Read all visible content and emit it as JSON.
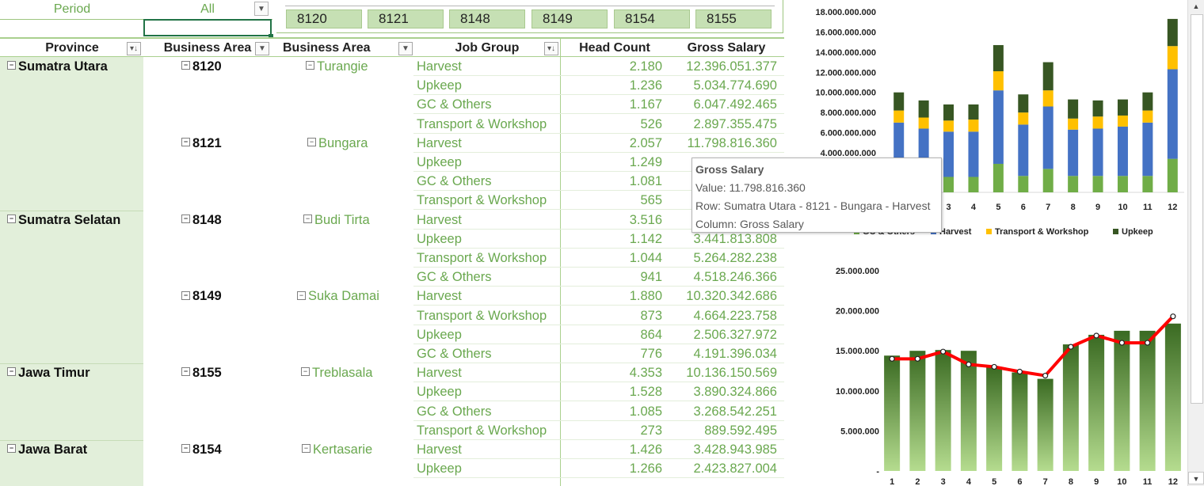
{
  "filter": {
    "label": "Period",
    "value": "All"
  },
  "slicer": {
    "items": [
      "8120",
      "8121",
      "8148",
      "8149",
      "8154",
      "8155"
    ]
  },
  "table": {
    "headers": [
      "Province",
      "Business Area",
      "Business Area Desc",
      "Job Group",
      "Head Count",
      "Gross Salary"
    ],
    "rows": [
      {
        "province": "Sumatra Utara",
        "area": "8120",
        "desc": "Turangie",
        "job": "Harvest",
        "hc": "2.180",
        "gs": "12.396.051.377"
      },
      {
        "province": "",
        "area": "",
        "desc": "",
        "job": "Upkeep",
        "hc": "1.236",
        "gs": "5.034.774.690"
      },
      {
        "province": "",
        "area": "",
        "desc": "",
        "job": "GC & Others",
        "hc": "1.167",
        "gs": "6.047.492.465"
      },
      {
        "province": "",
        "area": "",
        "desc": "",
        "job": "Transport & Workshop",
        "hc": "526",
        "gs": "2.897.355.475"
      },
      {
        "province": "",
        "area": "8121",
        "desc": "Bungara",
        "job": "Harvest",
        "hc": "2.057",
        "gs": "11.798.816.360"
      },
      {
        "province": "",
        "area": "",
        "desc": "",
        "job": "Upkeep",
        "hc": "1.249",
        "gs": ""
      },
      {
        "province": "",
        "area": "",
        "desc": "",
        "job": "GC & Others",
        "hc": "1.081",
        "gs": ""
      },
      {
        "province": "",
        "area": "",
        "desc": "",
        "job": "Transport & Workshop",
        "hc": "565",
        "gs": ""
      },
      {
        "province": "Sumatra Selatan",
        "area": "8148",
        "desc": "Budi Tirta",
        "job": "Harvest",
        "hc": "3.516",
        "gs": "1"
      },
      {
        "province": "",
        "area": "",
        "desc": "",
        "job": "Upkeep",
        "hc": "1.142",
        "gs": "3.441.813.808"
      },
      {
        "province": "",
        "area": "",
        "desc": "",
        "job": "Transport & Workshop",
        "hc": "1.044",
        "gs": "5.264.282.238"
      },
      {
        "province": "",
        "area": "",
        "desc": "",
        "job": "GC & Others",
        "hc": "941",
        "gs": "4.518.246.366"
      },
      {
        "province": "",
        "area": "8149",
        "desc": "Suka Damai",
        "job": "Harvest",
        "hc": "1.880",
        "gs": "10.320.342.686"
      },
      {
        "province": "",
        "area": "",
        "desc": "",
        "job": "Transport & Workshop",
        "hc": "873",
        "gs": "4.664.223.758"
      },
      {
        "province": "",
        "area": "",
        "desc": "",
        "job": "Upkeep",
        "hc": "864",
        "gs": "2.506.327.972"
      },
      {
        "province": "",
        "area": "",
        "desc": "",
        "job": "GC & Others",
        "hc": "776",
        "gs": "4.191.396.034"
      },
      {
        "province": "Jawa Timur",
        "area": "8155",
        "desc": "Treblasala",
        "job": "Harvest",
        "hc": "4.353",
        "gs": "10.136.150.569"
      },
      {
        "province": "",
        "area": "",
        "desc": "",
        "job": "Upkeep",
        "hc": "1.528",
        "gs": "3.890.324.866"
      },
      {
        "province": "",
        "area": "",
        "desc": "",
        "job": "GC & Others",
        "hc": "1.085",
        "gs": "3.268.542.251"
      },
      {
        "province": "",
        "area": "",
        "desc": "",
        "job": "Transport & Workshop",
        "hc": "273",
        "gs": "889.592.495"
      },
      {
        "province": "Jawa Barat",
        "area": "8154",
        "desc": "Kertasarie",
        "job": "Harvest",
        "hc": "1.426",
        "gs": "3.428.943.985"
      },
      {
        "province": "",
        "area": "",
        "desc": "",
        "job": "Upkeep",
        "hc": "1.266",
        "gs": "2.423.827.004"
      }
    ]
  },
  "tooltip": {
    "title": "Gross Salary",
    "value": "Value:  11.798.816.360",
    "row": "Row: Sumatra Utara - 8121 - Bungara - Harvest",
    "column": "Column: Gross Salary"
  },
  "colors": {
    "header_border": "#a9d08e",
    "province_fill": "#e2efda",
    "green_text": "#6aa84f",
    "gc_others": "#70ad47",
    "harvest": "#4472c4",
    "transport": "#ffc000",
    "upkeep": "#375623",
    "line": "#ff0000"
  },
  "chart_data": [
    {
      "type": "bar",
      "stacked": true,
      "categories": [
        "1",
        "2",
        "3",
        "4",
        "5",
        "6",
        "7",
        "8",
        "9",
        "10",
        "11",
        "12"
      ],
      "visible_tick_labels": [
        "3",
        "4",
        "5",
        "6",
        "7",
        "8",
        "9",
        "10",
        "11",
        "12"
      ],
      "ytick_labels": [
        "4.000.000.000",
        "6.000.000.000",
        "8.000.000.000",
        "10.000.000.000",
        "12.000.000.000",
        "14.000.000.000",
        "16.000.000.000",
        "18.000.000.000"
      ],
      "ylim": [
        0,
        18000000000
      ],
      "series": [
        {
          "name": "GC & Others",
          "color": "#70ad47",
          "values": [
            1600000000,
            1600000000,
            1600000000,
            1600000000,
            2900000000,
            1700000000,
            2400000000,
            1700000000,
            1700000000,
            1700000000,
            1700000000,
            3400000000
          ]
        },
        {
          "name": "Harvest",
          "color": "#4472c4",
          "values": [
            5400000000,
            4800000000,
            4500000000,
            4500000000,
            7300000000,
            5100000000,
            6200000000,
            4600000000,
            4700000000,
            4900000000,
            5300000000,
            8900000000
          ]
        },
        {
          "name": "Transport & Workshop",
          "color": "#ffc000",
          "values": [
            1200000000,
            1100000000,
            1100000000,
            1200000000,
            1900000000,
            1200000000,
            1600000000,
            1100000000,
            1200000000,
            1100000000,
            1200000000,
            2300000000
          ]
        },
        {
          "name": "Upkeep",
          "color": "#375623",
          "values": [
            1800000000,
            1700000000,
            1600000000,
            1500000000,
            2600000000,
            1800000000,
            2800000000,
            1900000000,
            1600000000,
            1600000000,
            1800000000,
            2700000000
          ]
        }
      ],
      "legend_visible": [
        "GC & Others",
        "Harvest",
        "Transport & Workshop",
        "Upkeep"
      ],
      "legend_placement": "bottom"
    },
    {
      "type": "bar",
      "overlay": "line",
      "categories": [
        "1",
        "2",
        "3",
        "4",
        "5",
        "6",
        "7",
        "8",
        "9",
        "10",
        "11",
        "12"
      ],
      "ytick_labels": [
        "-",
        "5.000.000",
        "10.000.000",
        "15.000.000",
        "20.000.000",
        "25.000.000"
      ],
      "ylim": [
        0,
        25000000
      ],
      "series": [
        {
          "type": "bar",
          "color": "#548235",
          "values": [
            14400000,
            15000000,
            15100000,
            15000000,
            13000000,
            12300000,
            11500000,
            15800000,
            17000000,
            17500000,
            17500000,
            18400000
          ]
        },
        {
          "type": "line",
          "color": "#ff0000",
          "values": [
            14000000,
            14000000,
            14900000,
            13300000,
            13000000,
            12400000,
            11900000,
            15500000,
            16900000,
            16000000,
            16000000,
            19300000
          ]
        }
      ]
    }
  ]
}
